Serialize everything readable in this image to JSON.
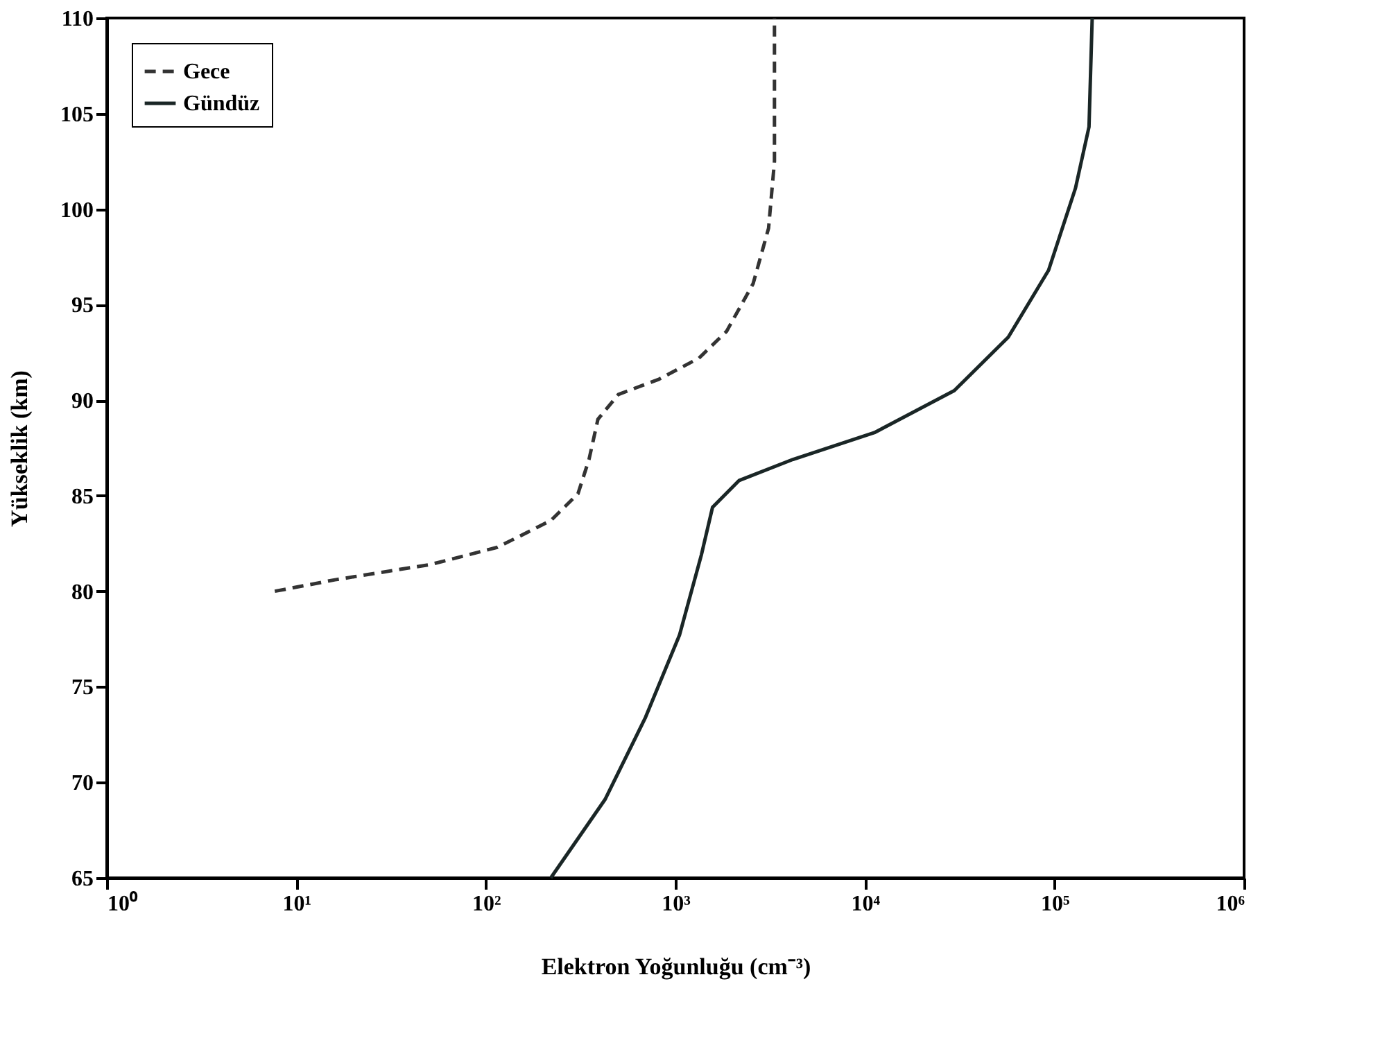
{
  "chart_data": {
    "type": "line",
    "xlabel": "Elektron Yoğunluğu (cm⁻³)",
    "ylabel": "Yükseklik (km)",
    "log": "x",
    "xlim": [
      1,
      1000000
    ],
    "ylim": [
      65,
      110
    ],
    "xticks": [
      {
        "value": 1,
        "label": "10⁰"
      },
      {
        "value": 10,
        "label": "10¹"
      },
      {
        "value": 100,
        "label": "10²"
      },
      {
        "value": 1000,
        "label": "10³"
      },
      {
        "value": 10000,
        "label": "10⁴"
      },
      {
        "value": 100000,
        "label": "10⁵"
      },
      {
        "value": 1000000,
        "label": "10⁶"
      }
    ],
    "yticks": [
      65,
      70,
      75,
      80,
      85,
      90,
      95,
      100,
      105,
      110
    ],
    "grid": false,
    "legend": "top left",
    "marker": "none",
    "series": [
      {
        "name": "Gece",
        "color": "#333333",
        "line_style": "dashed",
        "x": [
          7.7,
          16,
          51,
          115,
          220,
          306,
          350,
          390,
          500,
          820,
          1330,
          1860,
          2570,
          3100,
          3330,
          3330
        ],
        "values": [
          80,
          80.6,
          81.4,
          82.3,
          83.7,
          85.1,
          86.9,
          89,
          90.3,
          91.1,
          92.2,
          93.6,
          96.1,
          99,
          102.5,
          110
        ]
      },
      {
        "name": "Gündüz",
        "color": "#1a2626",
        "line_style": "solid",
        "x": [
          220,
          425,
          695,
          1050,
          1370,
          1570,
          2170,
          4170,
          11200,
          29600,
          57000,
          93000,
          129000,
          152000,
          158000
        ],
        "values": [
          65,
          69.1,
          73.4,
          77.7,
          81.9,
          84.4,
          85.8,
          86.9,
          88.3,
          90.5,
          93.3,
          96.8,
          101.1,
          104.3,
          110
        ]
      }
    ]
  }
}
